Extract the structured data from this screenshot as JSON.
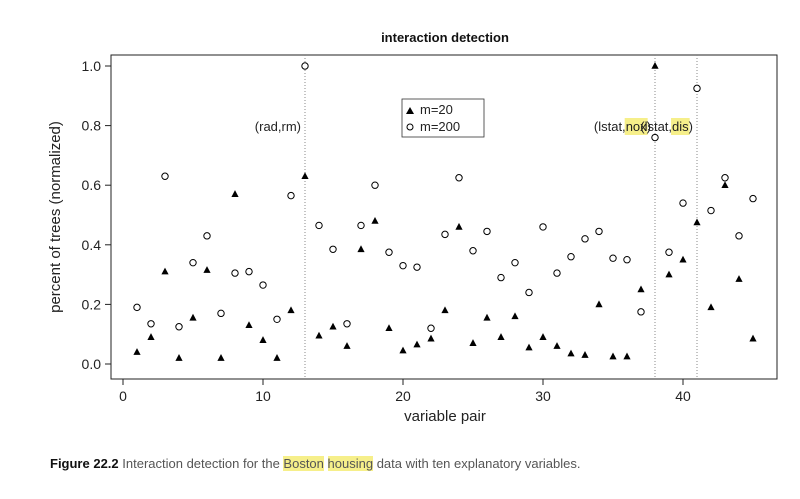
{
  "chart_data": {
    "type": "scatter",
    "title": "interaction detection",
    "xlabel": "variable pair",
    "ylabel": "percent of trees (normalized)",
    "xlim": [
      0,
      46
    ],
    "ylim": [
      -0.02,
      1.03
    ],
    "xticks": [
      0,
      10,
      20,
      30,
      40
    ],
    "yticks": [
      0.0,
      0.2,
      0.4,
      0.6,
      0.8,
      1.0
    ],
    "ytick_labels": [
      "0.0",
      "0.2",
      "0.4",
      "0.6",
      "0.8",
      "1.0"
    ],
    "grid": false,
    "legend_position": "top-center",
    "series": [
      {
        "name": "m=20",
        "marker": "filled-triangle",
        "color": "#000000",
        "x": [
          1,
          2,
          3,
          4,
          5,
          6,
          7,
          8,
          9,
          10,
          11,
          12,
          13,
          14,
          15,
          16,
          17,
          18,
          19,
          20,
          21,
          22,
          23,
          24,
          25,
          26,
          27,
          28,
          29,
          30,
          31,
          32,
          33,
          34,
          35,
          36,
          37,
          38,
          39,
          40,
          41,
          42,
          43,
          44,
          45
        ],
        "values": [
          0.04,
          0.09,
          0.31,
          0.02,
          0.155,
          0.315,
          0.02,
          0.57,
          0.13,
          0.08,
          0.02,
          0.18,
          0.63,
          0.095,
          0.125,
          0.06,
          0.385,
          0.48,
          0.12,
          0.045,
          0.065,
          0.085,
          0.18,
          0.46,
          0.07,
          0.155,
          0.09,
          0.16,
          0.055,
          0.09,
          0.06,
          0.035,
          0.03,
          0.2,
          0.025,
          0.025,
          0.25,
          1.0,
          0.3,
          0.35,
          0.475,
          0.19,
          0.6,
          0.285,
          0.085
        ]
      },
      {
        "name": "m=200",
        "marker": "open-circle",
        "color": "#000000",
        "x": [
          1,
          2,
          3,
          4,
          5,
          6,
          7,
          8,
          9,
          10,
          11,
          12,
          13,
          14,
          15,
          16,
          17,
          18,
          19,
          20,
          21,
          22,
          23,
          24,
          25,
          26,
          27,
          28,
          29,
          30,
          31,
          32,
          33,
          34,
          35,
          36,
          37,
          38,
          39,
          40,
          41,
          42,
          43,
          44,
          45
        ],
        "values": [
          0.19,
          0.135,
          0.63,
          0.125,
          0.34,
          0.43,
          0.17,
          0.305,
          0.31,
          0.265,
          0.15,
          0.565,
          1.0,
          0.465,
          0.385,
          0.135,
          0.465,
          0.6,
          0.375,
          0.33,
          0.325,
          0.12,
          0.435,
          0.625,
          0.38,
          0.445,
          0.29,
          0.34,
          0.24,
          0.46,
          0.305,
          0.36,
          0.42,
          0.445,
          0.355,
          0.35,
          0.175,
          0.76,
          0.375,
          0.54,
          0.925,
          0.515,
          0.625,
          0.43,
          0.555
        ]
      }
    ],
    "vlines": [
      13,
      38,
      41
    ],
    "annotations": [
      {
        "x": 13,
        "parts": [
          {
            "text": "(rad,rm)",
            "highlight": false
          }
        ]
      },
      {
        "x": 38,
        "parts": [
          {
            "text": "(lstat,",
            "highlight": false
          },
          {
            "text": "nox",
            "highlight": true
          },
          {
            "text": ")",
            "highlight": false
          }
        ]
      },
      {
        "x": 41,
        "parts": [
          {
            "text": "(lstat,",
            "highlight": false
          },
          {
            "text": "dis",
            "highlight": true
          },
          {
            "text": ")",
            "highlight": false
          }
        ]
      }
    ],
    "highlight_color": "#f6ef8a"
  },
  "caption": {
    "label": "Figure 22.2",
    "text_1": "Interaction detection for the ",
    "highlight_1": "Boston",
    "text_2": " ",
    "highlight_2": "housing",
    "text_3": " data with ten explanatory variables."
  }
}
